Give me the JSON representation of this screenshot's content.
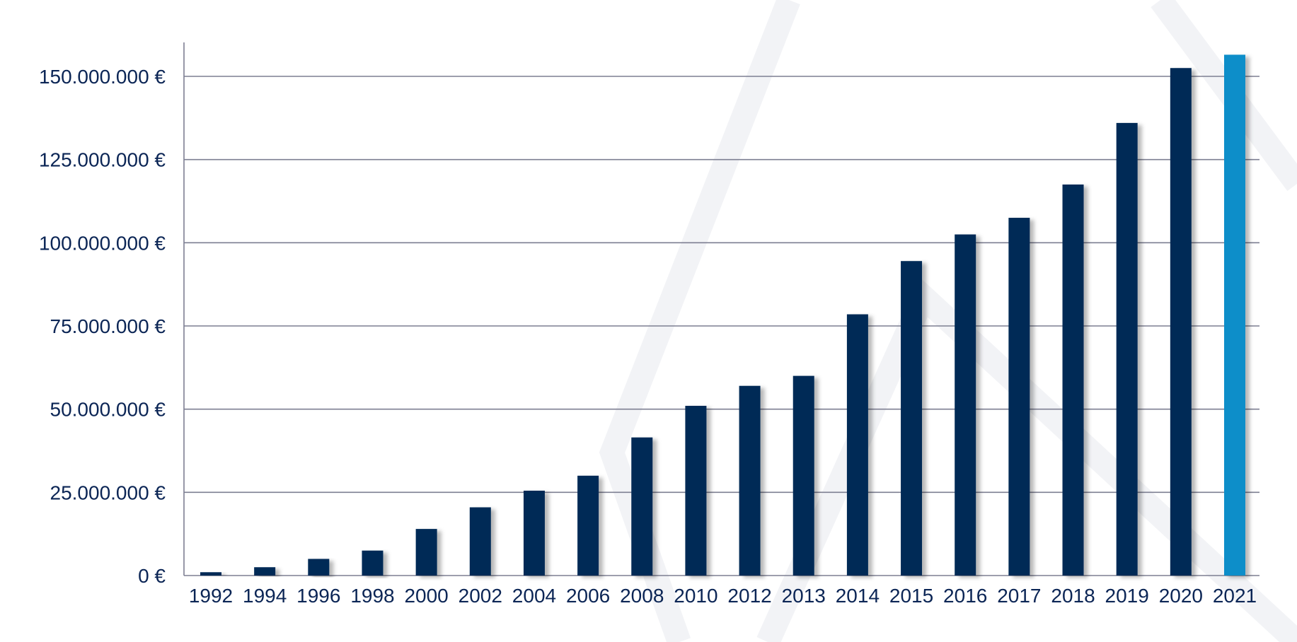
{
  "chart_data": {
    "type": "bar",
    "title": "",
    "xlabel": "",
    "ylabel": "",
    "categories": [
      "1992",
      "1994",
      "1996",
      "1998",
      "2000",
      "2002",
      "2004",
      "2006",
      "2008",
      "2010",
      "2012",
      "2013",
      "2014",
      "2015",
      "2016",
      "2017",
      "2018",
      "2019",
      "2020",
      "2021"
    ],
    "values": [
      1000000,
      2500000,
      5000000,
      7500000,
      14000000,
      20500000,
      25500000,
      30000000,
      41500000,
      51000000,
      57000000,
      60000000,
      78500000,
      94500000,
      102500000,
      107500000,
      117500000,
      136000000,
      152500000,
      156500000
    ],
    "ylim": [
      0,
      160000000
    ],
    "yticks": [
      0,
      25000000,
      50000000,
      75000000,
      100000000,
      125000000,
      150000000
    ],
    "ytick_labels": [
      "0 €",
      "25.000.000 €",
      "50.000.000 €",
      "75.000.000 €",
      "100.000.000 €",
      "125.000.000 €",
      "150.000.000 €"
    ],
    "grid": true,
    "legend": "none",
    "bar_color": "#022b57",
    "highlight_color": "#0a8ec9",
    "highlight_category": "2021",
    "text_color": "#0b2555",
    "grid_color": "#7d7f92"
  }
}
